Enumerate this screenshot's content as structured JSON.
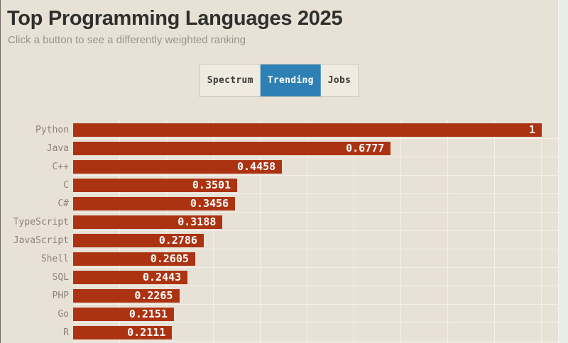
{
  "header": {
    "title": "Top Programming Languages 2025",
    "subtitle": "Click a button to see a differently weighted ranking"
  },
  "toggle": {
    "buttons": [
      {
        "label": "Spectrum",
        "active": false
      },
      {
        "label": "Trending",
        "active": true
      },
      {
        "label": "Jobs",
        "active": false
      }
    ]
  },
  "chart_data": {
    "type": "bar",
    "orientation": "horizontal",
    "title": "Top Programming Languages 2025",
    "categories": [
      "Python",
      "Java",
      "C++",
      "C",
      "C#",
      "TypeScript",
      "JavaScript",
      "Shell",
      "SQL",
      "PHP",
      "Go",
      "R"
    ],
    "values": [
      1,
      0.6777,
      0.4458,
      0.3501,
      0.3456,
      0.3188,
      0.2786,
      0.2605,
      0.2443,
      0.2265,
      0.2151,
      0.2111
    ],
    "value_labels": [
      "1",
      "0.6777",
      "0.4458",
      "0.3501",
      "0.3456",
      "0.3188",
      "0.2786",
      "0.2605",
      "0.2443",
      "0.2265",
      "0.2151",
      "0.2111"
    ],
    "xlim": [
      0,
      1
    ],
    "grid": true,
    "gridline_step": 0.1,
    "legend": "none",
    "value_label_position": "inside-end"
  },
  "colors": {
    "page_bg": "#e8e1d6",
    "bar_red": "#ac3311",
    "accent_blue": "#2e80b4",
    "title_color": "#2f2f2d",
    "subtitle_color": "#98938a",
    "label_color": "#8d8477",
    "btn_text": "#3a3a36",
    "group_bg": "#efebe1",
    "group_border": "#c9c4b7",
    "grid_line": "#f3f0e9",
    "scrollbar_bg": "#e9ece8",
    "window_edge": "#6b6760"
  }
}
